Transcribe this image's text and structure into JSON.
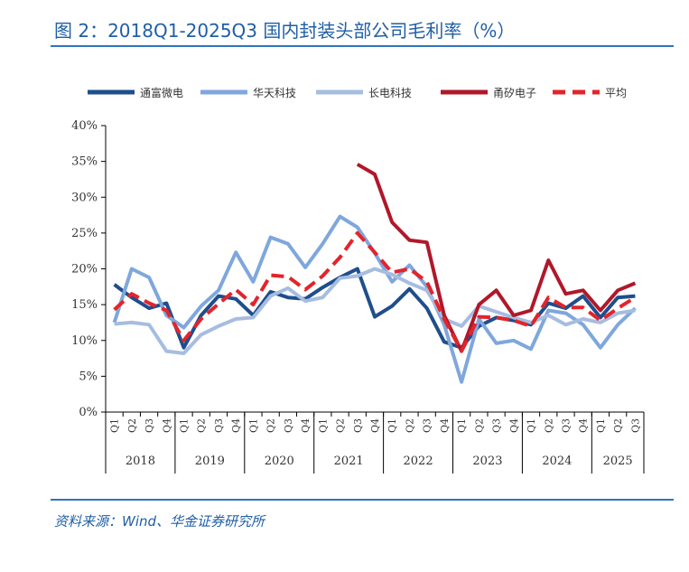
{
  "header": {
    "title": "图 2：2018Q1-2025Q3 国内封装头部公司毛利率（%）"
  },
  "footer": {
    "source": "资料来源：Wind、华金证券研究所"
  },
  "chart_data": {
    "type": "line",
    "title": "图 2：2018Q1-2025Q3 国内封装头部公司毛利率（%）",
    "ylabel": "",
    "xlabel": "",
    "ylim": [
      0,
      40
    ],
    "yticks": [
      "0%",
      "5%",
      "10%",
      "15%",
      "20%",
      "25%",
      "30%",
      "35%",
      "40%"
    ],
    "quarter_labels": [
      "Q1",
      "Q2",
      "Q3",
      "Q4",
      "Q1",
      "Q2",
      "Q3",
      "Q4",
      "Q1",
      "Q2",
      "Q3",
      "Q4",
      "Q1",
      "Q2",
      "Q3",
      "Q4",
      "Q1",
      "Q2",
      "Q3",
      "Q4",
      "Q1",
      "Q2",
      "Q3",
      "Q4",
      "Q1",
      "Q2",
      "Q3",
      "Q4",
      "Q1",
      "Q2",
      "Q3"
    ],
    "years": [
      "2018",
      "2019",
      "2020",
      "2021",
      "2022",
      "2023",
      "2024",
      "2025"
    ],
    "legend_position": "top",
    "grid": false,
    "series": [
      {
        "name": "通富微电",
        "color": "#1f4e8c",
        "dash": false,
        "values": [
          17.8,
          16.0,
          14.5,
          15.2,
          9.0,
          13.5,
          16.2,
          15.8,
          13.5,
          16.8,
          16.0,
          15.8,
          17.4,
          18.8,
          20.0,
          13.3,
          14.8,
          17.2,
          14.5,
          9.8,
          9.0,
          12.0,
          13.2,
          12.8,
          12.2,
          15.2,
          14.5,
          16.2,
          13.2,
          16.0,
          16.2
        ]
      },
      {
        "name": "华天科技",
        "color": "#7fa7dc",
        "dash": false,
        "values": [
          12.5,
          20.0,
          18.8,
          13.5,
          11.8,
          14.8,
          17.0,
          22.3,
          18.2,
          24.4,
          23.5,
          20.2,
          23.5,
          27.3,
          25.8,
          22.2,
          18.2,
          20.5,
          17.5,
          12.2,
          4.2,
          13.0,
          9.6,
          10.0,
          8.8,
          14.2,
          13.8,
          12.2,
          9.0,
          12.2,
          14.5
        ]
      },
      {
        "name": "长电科技",
        "color": "#a6bde0",
        "dash": false,
        "values": [
          12.3,
          12.5,
          12.2,
          8.5,
          8.2,
          10.8,
          12.0,
          13.0,
          13.2,
          16.2,
          17.3,
          15.5,
          16.0,
          18.7,
          19.0,
          20.0,
          19.2,
          18.0,
          17.0,
          13.0,
          12.0,
          14.8,
          14.0,
          13.2,
          12.5,
          13.5,
          12.2,
          13.0,
          12.5,
          13.8,
          14.2
        ]
      },
      {
        "name": "甬矽电子",
        "color": "#b0182a",
        "dash": false,
        "values": [
          null,
          null,
          null,
          null,
          null,
          null,
          null,
          null,
          null,
          null,
          null,
          null,
          null,
          null,
          34.6,
          33.2,
          26.5,
          24.0,
          23.7,
          13.5,
          8.5,
          15.0,
          17.0,
          13.5,
          14.2,
          21.2,
          16.5,
          17.0,
          14.2,
          17.0,
          18.0
        ]
      },
      {
        "name": "平均",
        "color": "#e3242b",
        "dash": true,
        "values": [
          14.3,
          16.5,
          15.2,
          14.2,
          10.0,
          13.0,
          15.1,
          17.1,
          15.0,
          19.1,
          18.9,
          17.1,
          19.0,
          21.6,
          25.0,
          22.3,
          19.5,
          20.0,
          18.2,
          13.0,
          8.5,
          13.3,
          13.2,
          12.8,
          12.0,
          16.0,
          14.6,
          14.6,
          12.8,
          14.5,
          16.0
        ]
      }
    ]
  }
}
